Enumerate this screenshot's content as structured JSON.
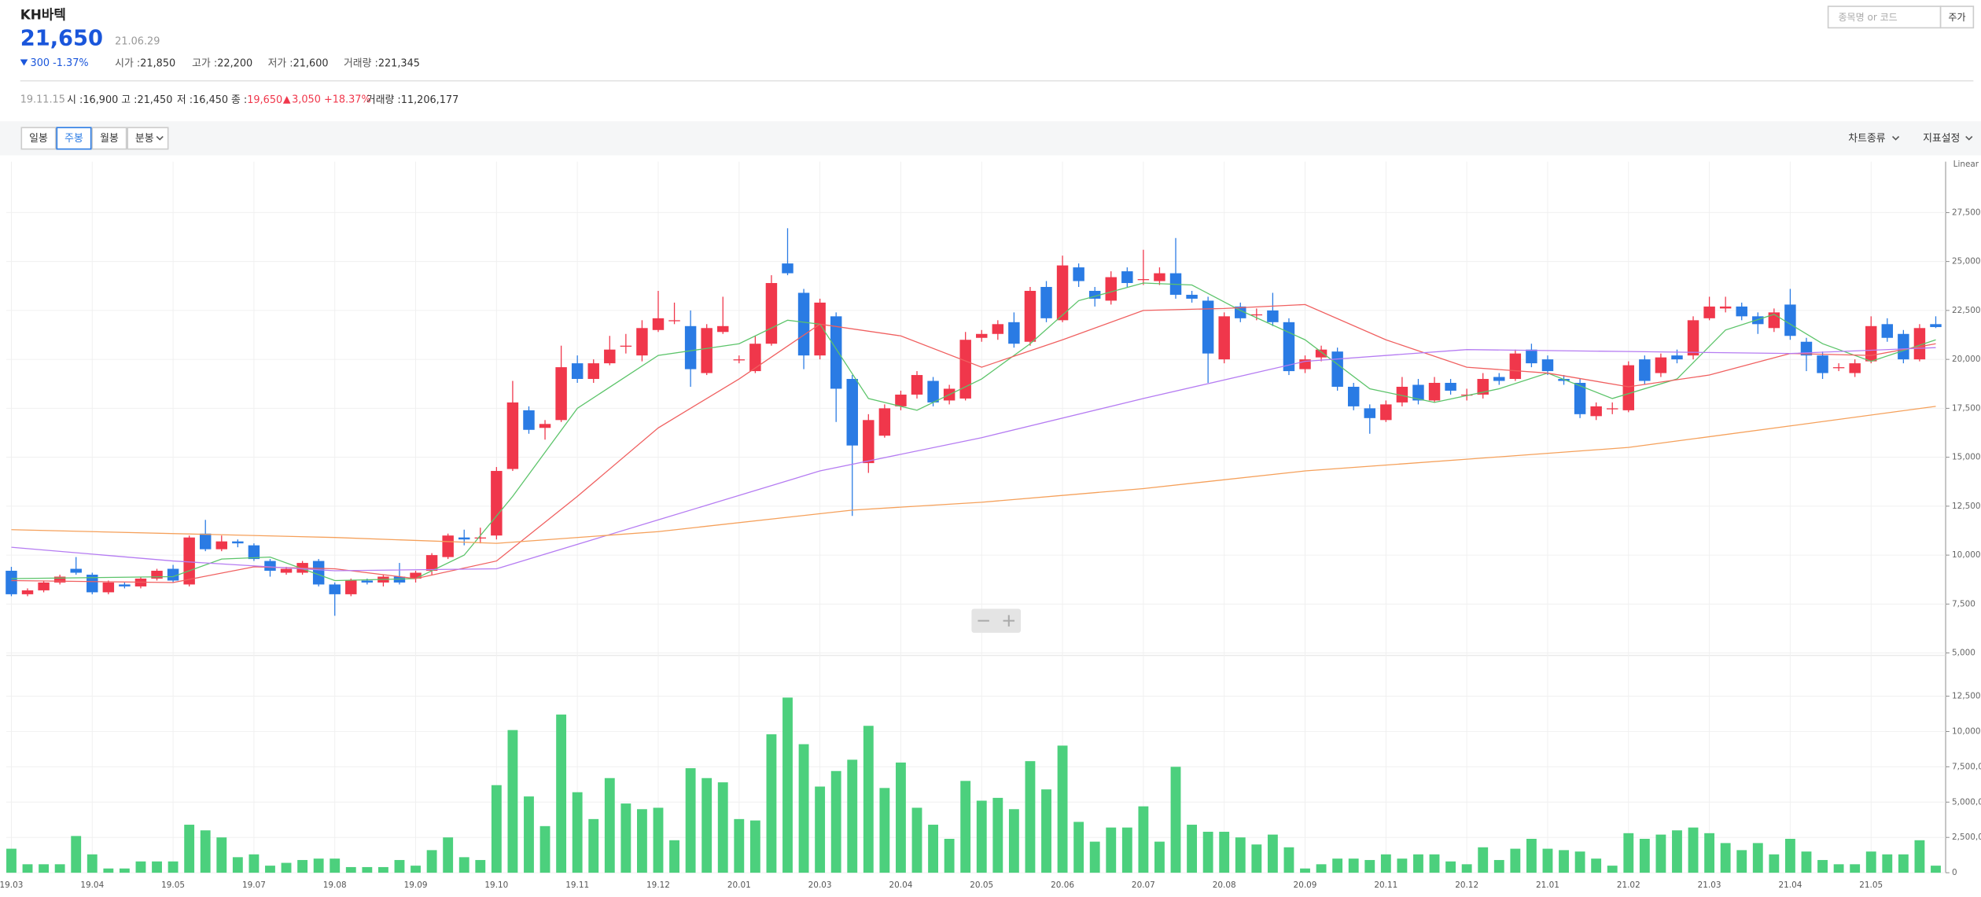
{
  "header": {
    "name": "KH바텍",
    "price": "21,650",
    "date": "21.06.29",
    "change": "300 -1.37%",
    "stats": [
      {
        "label": "시가 :",
        "value": "21,850"
      },
      {
        "label": "고가 :",
        "value": "22,200"
      },
      {
        "label": "저가 :",
        "value": "21,600"
      },
      {
        "label": "거래량 :",
        "value": "221,345"
      }
    ],
    "search_placeholder": "종목명 or 코드",
    "search_button": "주가"
  },
  "info_row": {
    "date": "19.11.15",
    "open": {
      "label": "시 :",
      "value": "16,900"
    },
    "high": {
      "label": "고 :",
      "value": "21,450"
    },
    "low": {
      "label": "저 :",
      "value": "16,450"
    },
    "close": {
      "label": "종 :",
      "value": "19,650"
    },
    "change": "3,050 +18.37%",
    "volume": {
      "label": "거래량 :",
      "value": "11,206,177"
    }
  },
  "toolbar": {
    "periods": [
      "일봉",
      "주봉",
      "월봉",
      "분봉"
    ],
    "selected": 1,
    "chart_type": "차트종류",
    "indicators": "지표설정"
  },
  "chart_data": {
    "type": "candlestick",
    "scale": "Linear",
    "grid": true,
    "up_color": "#f0374b",
    "down_color": "#2a7be4",
    "categories": [
      "19.03",
      null,
      null,
      null,
      null,
      "19.04",
      null,
      null,
      null,
      null,
      "19.05",
      null,
      null,
      null,
      null,
      "19.07",
      null,
      null,
      null,
      null,
      "19.08",
      null,
      null,
      null,
      null,
      "19.09",
      null,
      null,
      null,
      null,
      "19.10",
      null,
      null,
      null,
      null,
      "19.11",
      null,
      null,
      null,
      null,
      "19.12",
      null,
      null,
      null,
      null,
      "20.01",
      null,
      null,
      null,
      null,
      "20.03",
      null,
      null,
      null,
      null,
      "20.04",
      null,
      null,
      null,
      null,
      "20.05",
      null,
      null,
      null,
      null,
      "20.06",
      null,
      null,
      null,
      null,
      "20.07",
      null,
      null,
      null,
      null,
      "20.08",
      null,
      null,
      null,
      null,
      "20.09",
      null,
      null,
      null,
      null,
      "20.11",
      null,
      null,
      null,
      null,
      "20.12",
      null,
      null,
      null,
      null,
      "21.01",
      null,
      null,
      null,
      null,
      "21.02",
      null,
      null,
      null,
      null,
      "21.03",
      null,
      null,
      null,
      null,
      "21.04",
      null,
      null,
      null,
      null,
      "21.05",
      null,
      null,
      null,
      null
    ],
    "open": [
      9200,
      8000,
      8200,
      8600,
      9300,
      9000,
      8100,
      8500,
      8400,
      8800,
      9300,
      8500,
      11100,
      10300,
      10700,
      10500,
      9700,
      9100,
      9100,
      9700,
      8500,
      8000,
      8700,
      8600,
      8900,
      8800,
      9200,
      9900,
      10900,
      10900,
      11000,
      14400,
      17400,
      16500,
      16900,
      19800,
      19000,
      19800,
      20700,
      20200,
      21500,
      22000,
      21700,
      19300,
      21400,
      20000,
      19400,
      20800,
      24900,
      23400,
      20200,
      22200,
      19000,
      14700,
      16100,
      17600,
      18200,
      18900,
      17900,
      18000,
      21100,
      21300,
      21900,
      20900,
      23700,
      22000,
      24700,
      23500,
      23000,
      24500,
      24100,
      24000,
      24400,
      23300,
      23000,
      20000,
      22700,
      22300,
      22500,
      21900,
      19500,
      20100,
      20400,
      18600,
      17500,
      16900,
      17800,
      18700,
      17900,
      18800,
      18200,
      18200,
      19100,
      19000,
      20500,
      20000,
      19000,
      18800,
      17100,
      17500,
      17400,
      20000,
      19300,
      20200,
      20200,
      22100,
      22600,
      22700,
      22200,
      21600,
      22800,
      20900,
      20200,
      19600,
      19300,
      19900,
      21800,
      21300,
      20000,
      21800
    ],
    "high": [
      9400,
      8300,
      8700,
      9000,
      9900,
      9100,
      8700,
      8600,
      8900,
      9300,
      9500,
      11000,
      11800,
      11000,
      10800,
      10600,
      9800,
      9400,
      9700,
      9800,
      8600,
      8800,
      8800,
      9000,
      9600,
      9200,
      10100,
      11100,
      11300,
      11400,
      14500,
      18900,
      17600,
      16900,
      20700,
      20200,
      20000,
      21200,
      21300,
      22000,
      23500,
      22900,
      22500,
      21800,
      23200,
      20200,
      21200,
      24300,
      26700,
      23600,
      23100,
      22400,
      19200,
      17200,
      17700,
      18400,
      19400,
      19100,
      18700,
      21400,
      21500,
      22000,
      22400,
      23700,
      24000,
      25300,
      24900,
      23700,
      24500,
      24700,
      25600,
      24700,
      26200,
      23500,
      23200,
      22400,
      22900,
      22600,
      23400,
      22100,
      20200,
      20700,
      20600,
      18800,
      17700,
      17900,
      19100,
      19000,
      19100,
      19000,
      18500,
      19300,
      19300,
      20500,
      20800,
      20200,
      19200,
      19000,
      17800,
      17800,
      19900,
      20200,
      20300,
      20500,
      22200,
      23200,
      23200,
      22900,
      22400,
      22600,
      23600,
      21100,
      20400,
      19800,
      20000,
      22200,
      22100,
      21500,
      21800,
      22200
    ],
    "low": [
      7900,
      7900,
      8100,
      8500,
      9000,
      8000,
      8000,
      8300,
      8300,
      8700,
      8600,
      8400,
      10200,
      10200,
      10400,
      9700,
      8900,
      9000,
      9000,
      8400,
      6900,
      7900,
      8500,
      8400,
      8500,
      8600,
      9000,
      9800,
      10500,
      10600,
      10800,
      14300,
      16200,
      15900,
      16800,
      18800,
      18800,
      19700,
      20300,
      19900,
      21400,
      21800,
      18600,
      19200,
      21300,
      19800,
      19300,
      20700,
      24300,
      19500,
      20000,
      16800,
      12000,
      14200,
      16000,
      17400,
      18000,
      17600,
      17700,
      17900,
      20900,
      21000,
      20600,
      20700,
      21900,
      21900,
      23700,
      22700,
      22800,
      23700,
      23800,
      23800,
      23100,
      22900,
      18800,
      19800,
      21900,
      22000,
      21700,
      19200,
      19300,
      19900,
      18400,
      17400,
      16200,
      16800,
      17600,
      17700,
      17800,
      18200,
      17900,
      18000,
      18700,
      18900,
      19600,
      19200,
      18700,
      17000,
      16900,
      17200,
      17300,
      18700,
      19100,
      19800,
      20000,
      22000,
      22400,
      22000,
      21300,
      21400,
      21000,
      19400,
      19000,
      19400,
      19100,
      19800,
      20900,
      19800,
      19900,
      21600
    ],
    "close": [
      8000,
      8200,
      8600,
      8900,
      9100,
      8100,
      8600,
      8400,
      8800,
      9200,
      8700,
      10900,
      10300,
      10700,
      10600,
      9800,
      9200,
      9300,
      9600,
      8500,
      8000,
      8700,
      8600,
      8900,
      8600,
      9100,
      10000,
      11000,
      10800,
      10900,
      14300,
      17800,
      16400,
      16700,
      19600,
      19000,
      19800,
      20500,
      20700,
      21600,
      22100,
      22000,
      19500,
      21600,
      21700,
      20000,
      20800,
      23900,
      24400,
      20200,
      22900,
      18500,
      15600,
      16900,
      17500,
      18200,
      19200,
      17800,
      18500,
      21000,
      21300,
      21800,
      20800,
      23500,
      22100,
      24800,
      24000,
      23100,
      24200,
      23900,
      24100,
      24400,
      23300,
      23100,
      20300,
      22200,
      22100,
      22300,
      21900,
      19400,
      20000,
      20500,
      18600,
      17600,
      17000,
      17700,
      18600,
      17900,
      18800,
      18400,
      18200,
      19000,
      18900,
      20300,
      19800,
      19400,
      18900,
      17200,
      17600,
      17500,
      19700,
      18900,
      20100,
      20000,
      22000,
      22700,
      22700,
      22200,
      21800,
      22400,
      21200,
      20200,
      19300,
      19600,
      19800,
      21700,
      21100,
      20000,
      21600,
      21650
    ],
    "ylim": [
      5000,
      30100
    ],
    "yticks": [
      {
        "value": 5000,
        "label": "5,000"
      },
      {
        "value": 7500,
        "label": "7,500"
      },
      {
        "value": 10000,
        "label": "10,000"
      },
      {
        "value": 12500,
        "label": "12,500"
      },
      {
        "value": 15000,
        "label": "15,000"
      },
      {
        "value": 17500,
        "label": "17,500"
      },
      {
        "value": 20000,
        "label": "20,000"
      },
      {
        "value": 22500,
        "label": "22,500"
      },
      {
        "value": 25000,
        "label": "25,000"
      },
      {
        "value": 27500,
        "label": "27,500"
      }
    ],
    "lines": [
      {
        "color": "#5cc46a",
        "x": [
          0,
          10,
          13,
          16,
          20,
          25,
          28,
          31,
          35,
          40,
          45,
          48,
          50,
          53,
          56,
          60,
          63,
          66,
          70,
          73,
          76,
          80,
          84,
          88,
          92,
          95,
          99,
          103,
          106,
          109,
          112,
          115,
          119
        ],
        "values": [
          8800,
          8900,
          9800,
          9900,
          8700,
          8800,
          10000,
          13000,
          17500,
          20200,
          20800,
          22000,
          21800,
          18000,
          17400,
          19000,
          20800,
          23000,
          23900,
          23800,
          22500,
          21000,
          18500,
          17800,
          18500,
          19300,
          18000,
          19000,
          21500,
          22300,
          20800,
          19900,
          21000
        ]
      },
      {
        "color": "#f06060",
        "x": [
          0,
          10,
          15,
          20,
          25,
          30,
          35,
          40,
          45,
          50,
          55,
          60,
          65,
          70,
          75,
          80,
          85,
          90,
          95,
          100,
          105,
          110,
          115,
          119
        ],
        "values": [
          8700,
          8600,
          9400,
          9300,
          8800,
          9700,
          13000,
          16500,
          19000,
          21800,
          21200,
          19600,
          21000,
          22500,
          22600,
          22800,
          21000,
          19600,
          19300,
          18600,
          19200,
          20300,
          20200,
          20800
        ]
      },
      {
        "color": "#b57cf2",
        "x": [
          0,
          10,
          20,
          30,
          40,
          50,
          60,
          70,
          80,
          90,
          100,
          110,
          119
        ],
        "values": [
          10400,
          9700,
          9200,
          9300,
          11800,
          14300,
          16000,
          18000,
          19900,
          20500,
          20400,
          20300,
          20600
        ]
      },
      {
        "color": "#f5a05a",
        "x": [
          0,
          20,
          30,
          40,
          52,
          60,
          70,
          80,
          90,
          100,
          110,
          119
        ],
        "values": [
          11300,
          10900,
          10600,
          11200,
          12300,
          12700,
          13400,
          14300,
          14900,
          15500,
          16600,
          17600
        ]
      }
    ],
    "volume": {
      "color": "#4cd07d",
      "ylim": [
        0,
        15200000
      ],
      "yticks": [
        0,
        {
          "value": 2500000,
          "label": "2,500,000"
        },
        {
          "value": 5000000,
          "label": "5,000,000"
        },
        {
          "value": 7500000,
          "label": "7,500,000"
        },
        {
          "value": 10000000,
          "label": "10,000,000"
        },
        {
          "value": 12500000,
          "label": "12,500,000"
        }
      ],
      "values": [
        1700000,
        600000,
        600000,
        600000,
        2600000,
        1300000,
        300000,
        300000,
        800000,
        800000,
        800000,
        3400000,
        3000000,
        2500000,
        1100000,
        1300000,
        500000,
        700000,
        900000,
        1000000,
        1000000,
        400000,
        400000,
        400000,
        900000,
        500000,
        1600000,
        2500000,
        1100000,
        900000,
        6200000,
        10100000,
        5400000,
        3300000,
        11200000,
        5700000,
        3800000,
        6700000,
        4900000,
        4500000,
        4600000,
        2300000,
        7400000,
        6700000,
        6400000,
        3800000,
        3700000,
        9800000,
        12400000,
        9100000,
        6100000,
        7200000,
        8000000,
        10400000,
        6000000,
        7800000,
        4600000,
        3400000,
        2400000,
        6500000,
        5100000,
        5300000,
        4500000,
        7900000,
        5900000,
        9000000,
        3600000,
        2200000,
        3200000,
        3200000,
        4700000,
        2200000,
        7500000,
        3400000,
        2900000,
        2900000,
        2500000,
        2000000,
        2700000,
        1800000,
        300000,
        600000,
        1000000,
        1000000,
        900000,
        1300000,
        1000000,
        1300000,
        1300000,
        800000,
        600000,
        1800000,
        900000,
        1700000,
        2400000,
        1700000,
        1600000,
        1500000,
        1000000,
        500000,
        2800000,
        2400000,
        2700000,
        3000000,
        3200000,
        2800000,
        2100000,
        1600000,
        2100000,
        1300000,
        2400000,
        1500000,
        900000,
        600000,
        600000,
        1500000,
        1300000,
        1300000,
        2300000,
        500000
      ]
    }
  }
}
